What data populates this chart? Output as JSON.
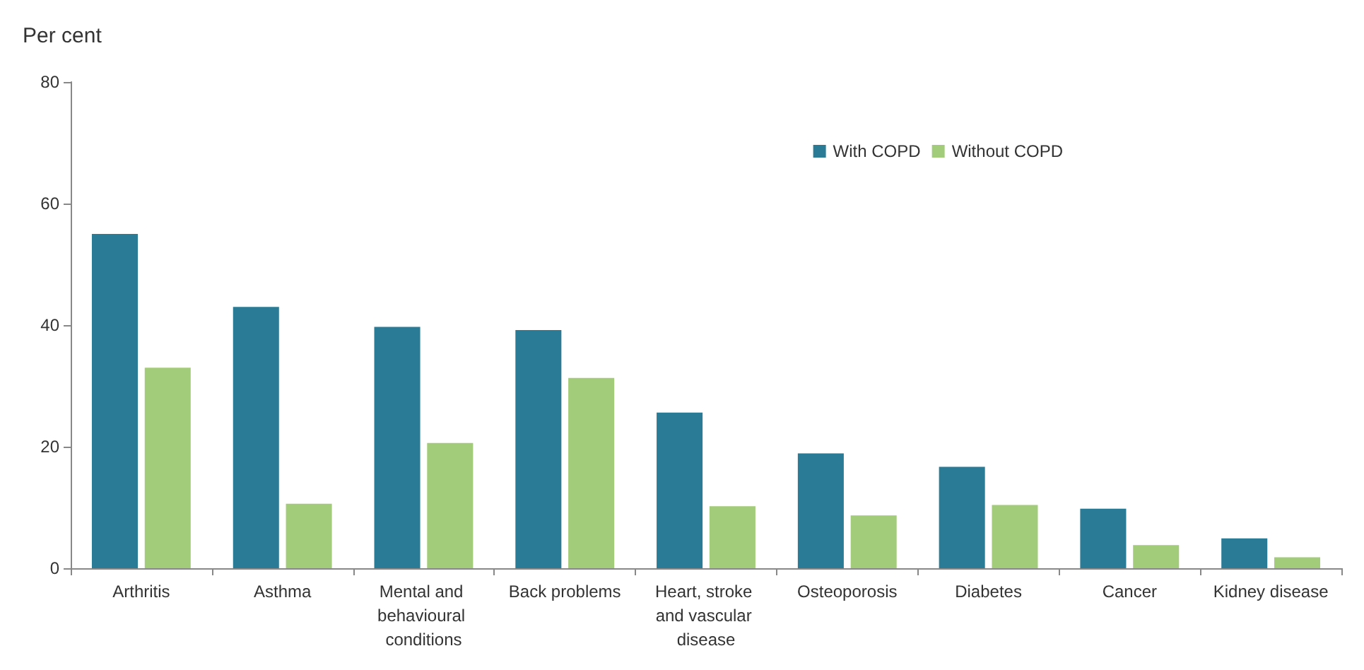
{
  "chart_data": {
    "type": "bar",
    "ylabel": "Per cent",
    "categories": [
      "Arthritis",
      "Asthma",
      "Mental and behavioural conditions",
      "Back problems",
      "Heart, stroke and vascular disease",
      "Osteoporosis",
      "Diabetes",
      "Cancer",
      "Kidney disease"
    ],
    "series": [
      {
        "name": "With COPD",
        "color": "#2a7b96",
        "values": [
          55,
          43,
          39.7,
          39.2,
          25.6,
          18.9,
          16.7,
          9.8,
          4.9
        ]
      },
      {
        "name": "Without COPD",
        "color": "#a3cc7a",
        "values": [
          33,
          10.6,
          20.6,
          31.3,
          10.2,
          8.7,
          10.4,
          3.8,
          1.8
        ]
      }
    ],
    "ylim": [
      0,
      80
    ],
    "yticks": [
      0,
      20,
      40,
      60,
      80
    ],
    "grid": false,
    "legend": "top right"
  }
}
